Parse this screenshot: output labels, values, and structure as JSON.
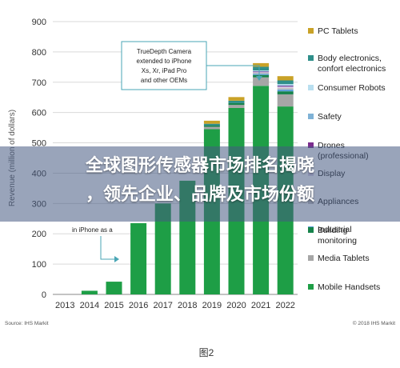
{
  "chart_data": {
    "type": "bar",
    "stacked": true,
    "categories": [
      "2013",
      "2014",
      "2015",
      "2016",
      "2017",
      "2018",
      "2019",
      "2020",
      "2021",
      "2022"
    ],
    "ylabel": "Revenue (million of dollars)",
    "ylim": [
      0,
      900
    ],
    "yticks": [
      0,
      100,
      200,
      300,
      400,
      500,
      600,
      700,
      800,
      900
    ],
    "grid": true,
    "legend_position": "right",
    "series": [
      {
        "name": "Mobile Handsets",
        "color": "#1e9e46",
        "values": [
          0,
          12,
          42,
          235,
          300,
          375,
          545,
          615,
          688,
          620
        ]
      },
      {
        "name": "Media Tablets",
        "color": "#a6a6a6",
        "values": [
          0,
          0,
          0,
          0,
          0,
          0,
          8,
          10,
          28,
          40
        ]
      },
      {
        "name": "Building monitoring",
        "color": "#16834b",
        "values": [
          0,
          0,
          0,
          0,
          0,
          0,
          4,
          6,
          8,
          10
        ]
      },
      {
        "name": "Industrial",
        "color": "#5fa0d8",
        "values": [
          0,
          0,
          0,
          0,
          0,
          0,
          0,
          0,
          4,
          6
        ]
      },
      {
        "name": "Appliances",
        "color": "#c0bfc0",
        "values": [
          0,
          0,
          0,
          0,
          0,
          0,
          0,
          0,
          3,
          5
        ]
      },
      {
        "name": "Display",
        "color": "#ddd5ec",
        "values": [
          0,
          0,
          0,
          0,
          0,
          0,
          0,
          0,
          2,
          4
        ]
      },
      {
        "name": "Drones (professional)",
        "color": "#7b2d8e",
        "values": [
          0,
          0,
          0,
          0,
          0,
          0,
          0,
          0,
          2,
          3
        ]
      },
      {
        "name": "Safety",
        "color": "#7fb2d6",
        "values": [
          0,
          0,
          0,
          0,
          0,
          0,
          0,
          0,
          2,
          3
        ]
      },
      {
        "name": "Consumer Robots",
        "color": "#b9dff0",
        "values": [
          0,
          0,
          0,
          0,
          0,
          0,
          0,
          0,
          2,
          3
        ]
      },
      {
        "name": "Body electronics, confort electronics",
        "color": "#2f8f8a",
        "values": [
          0,
          0,
          0,
          0,
          0,
          0,
          6,
          8,
          12,
          12
        ]
      },
      {
        "name": "PC Tablets",
        "color": "#c9a227",
        "values": [
          0,
          0,
          0,
          0,
          0,
          0,
          10,
          12,
          12,
          14
        ]
      }
    ],
    "annotations": [
      {
        "lines": [
          "TrueDepth Camera",
          "extended to iPhone",
          "Xs, Xr, iPad Pro",
          "and other OEMs"
        ]
      },
      {
        "lines": [
          "in iPhone as a"
        ]
      }
    ]
  },
  "legend": [
    {
      "lines": [
        "PC Tablets"
      ],
      "color": "#c9a227"
    },
    {
      "lines": [
        "Body electronics,",
        "confort electronics"
      ],
      "color": "#2f8f8a"
    },
    {
      "lines": [
        "Consumer Robots"
      ],
      "color": "#b9dff0"
    },
    {
      "lines": [
        "Safety"
      ],
      "color": "#7fb2d6"
    },
    {
      "lines": [
        "Drones",
        "(professional)"
      ],
      "color": "#7b2d8e"
    },
    {
      "lines": [
        "Display"
      ],
      "color": "#ddd5ec"
    },
    {
      "lines": [
        "Appliances"
      ],
      "color": "#c0bfc0"
    },
    {
      "lines": [
        "Industrial"
      ],
      "color": "#5fa0d8"
    },
    {
      "lines": [
        "Building",
        "monitoring"
      ],
      "color": "#16834b"
    },
    {
      "lines": [
        "Media Tablets"
      ],
      "color": "#a6a6a6"
    },
    {
      "lines": [
        "Mobile Handsets"
      ],
      "color": "#1e9e46"
    }
  ],
  "footer": {
    "source": "Source: IHS Markit",
    "copyright": "© 2018 IHS Markit"
  },
  "figure_label": "图2",
  "banner": {
    "line1": "全球图形传感器市场排名揭晓",
    "line2": "，领先企业、品牌及市场份额"
  }
}
